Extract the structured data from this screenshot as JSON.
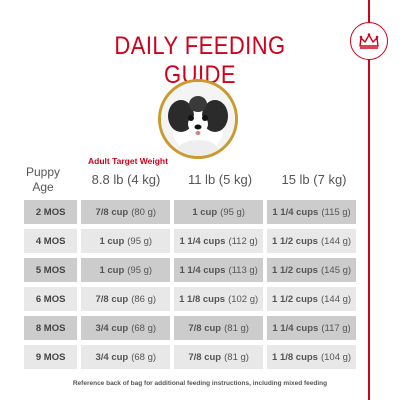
{
  "title": "DAILY FEEDING GUIDE",
  "brand": {
    "icon": "crown-icon",
    "color": "#d0021b"
  },
  "photo": {
    "icon": "dog-photo",
    "border_color": "#c99a2e"
  },
  "subtitle": "Adult Target Weight",
  "corner_label": [
    "Puppy",
    "Age"
  ],
  "columns": [
    "8.8 lb (4 kg)",
    "11 lb (5 kg)",
    "15 lb (7 kg)"
  ],
  "rows": [
    {
      "age": "2 MOS",
      "values": [
        [
          "7/8 cup",
          "(80 g)"
        ],
        [
          "1 cup",
          "(95 g)"
        ],
        [
          "1 1/4 cups",
          "(115 g)"
        ]
      ]
    },
    {
      "age": "4 MOS",
      "values": [
        [
          "1 cup",
          "(95 g)"
        ],
        [
          "1 1/4 cups",
          "(112 g)"
        ],
        [
          "1 1/2 cups",
          "(144 g)"
        ]
      ]
    },
    {
      "age": "5 MOS",
      "values": [
        [
          "1 cup",
          "(95 g)"
        ],
        [
          "1 1/4 cups",
          "(113 g)"
        ],
        [
          "1 1/2 cups",
          "(145 g)"
        ]
      ]
    },
    {
      "age": "6 MOS",
      "values": [
        [
          "7/8 cup",
          "(86 g)"
        ],
        [
          "1 1/8 cups",
          "(102 g)"
        ],
        [
          "1 1/2 cups",
          "(144 g)"
        ]
      ]
    },
    {
      "age": "8 MOS",
      "values": [
        [
          "3/4 cup",
          "(68 g)"
        ],
        [
          "7/8 cup",
          "(81 g)"
        ],
        [
          "1 1/4 cups",
          "(117 g)"
        ]
      ]
    },
    {
      "age": "9 MOS",
      "values": [
        [
          "3/4 cup",
          "(68 g)"
        ],
        [
          "7/8 cup",
          "(81 g)"
        ],
        [
          "1 1/8 cups",
          "(104 g)"
        ]
      ]
    }
  ],
  "footnote": "Reference back of bag for additional feeding instructions, including mixed feeding"
}
